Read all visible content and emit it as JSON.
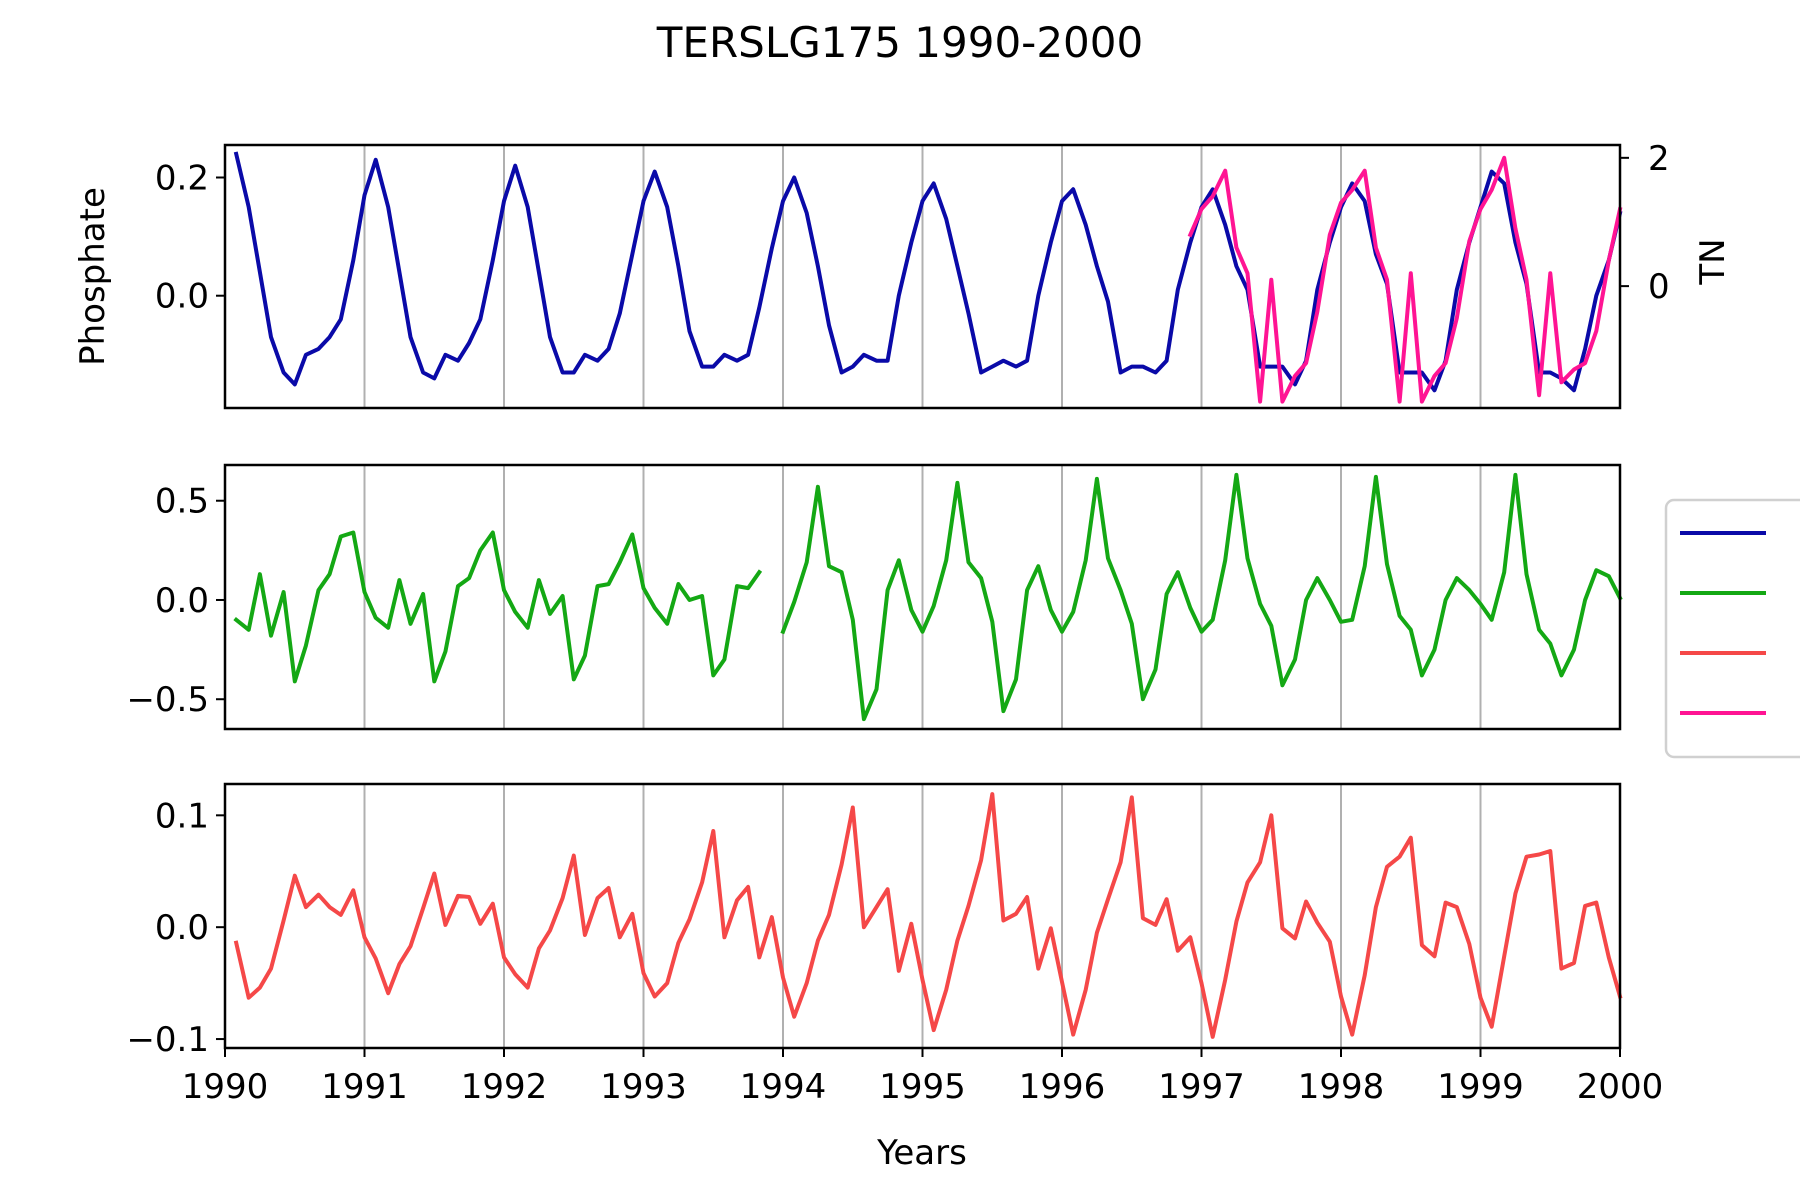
{
  "chart_data": {
    "type": "line",
    "title": "TERSLG175 1990-2000",
    "xlabel": "Years",
    "xlim": [
      1990,
      2000
    ],
    "xticks": [
      "1990",
      "1991",
      "1992",
      "1993",
      "1994",
      "1995",
      "1996",
      "1997",
      "1998",
      "1999",
      "2000"
    ],
    "grid": "vertical",
    "legend": "right (partially cut off, labels not visible)",
    "legend_colors": [
      "#0a0aa8",
      "#14a814",
      "#f54848",
      "#ff1493"
    ],
    "panels": [
      {
        "ylabel": "Phosphate",
        "ylim": [
          -0.19,
          0.255
        ],
        "yticks": [
          {
            "value": 0.2,
            "label": "0.2"
          },
          {
            "value": 0.0,
            "label": "0.0"
          }
        ],
        "secondary_axis": {
          "label": "TN",
          "ylim": [
            -1.9,
            2.2
          ],
          "yticks": [
            {
              "value": 2,
              "label": "2"
            },
            {
              "value": 0,
              "label": "0"
            }
          ]
        },
        "series": [
          {
            "color": "#0a0aa8",
            "axis": "left",
            "x": [
              1990.08,
              1990.17,
              1990.25,
              1990.33,
              1990.42,
              1990.5,
              1990.58,
              1990.67,
              1990.75,
              1990.83,
              1990.92,
              1991.0,
              1991.08,
              1991.17,
              1991.25,
              1991.33,
              1991.42,
              1991.5,
              1991.58,
              1991.67,
              1991.75,
              1991.83,
              1991.92,
              1992.0,
              1992.08,
              1992.17,
              1992.25,
              1992.33,
              1992.42,
              1992.5,
              1992.58,
              1992.67,
              1992.75,
              1992.83,
              1992.92,
              1993.0,
              1993.08,
              1993.17,
              1993.25,
              1993.33,
              1993.42,
              1993.5,
              1993.58,
              1993.67,
              1993.75,
              1993.83,
              1993.92,
              1994.0,
              1994.08,
              1994.17,
              1994.25,
              1994.33,
              1994.42,
              1994.5,
              1994.58,
              1994.67,
              1994.75,
              1994.83,
              1994.92,
              1995.0,
              1995.08,
              1995.17,
              1995.25,
              1995.33,
              1995.42,
              1995.5,
              1995.58,
              1995.67,
              1995.75,
              1995.83,
              1995.92,
              1996.0,
              1996.08,
              1996.17,
              1996.25,
              1996.33,
              1996.42,
              1996.5,
              1996.58,
              1996.67,
              1996.75,
              1996.83,
              1996.92,
              1997.0,
              1997.08,
              1997.17,
              1997.25,
              1997.33,
              1997.42,
              1997.5,
              1997.58,
              1997.67,
              1997.75,
              1997.83,
              1997.92,
              1998.0,
              1998.08,
              1998.17,
              1998.25,
              1998.33,
              1998.42,
              1998.5,
              1998.58,
              1998.67,
              1998.75,
              1998.83,
              1998.92,
              1999.0,
              1999.08,
              1999.17,
              1999.25,
              1999.33,
              1999.42,
              1999.5,
              1999.58,
              1999.67,
              1999.75,
              1999.83,
              1999.92,
              2000.0
            ],
            "y": [
              0.24,
              0.15,
              0.04,
              -0.07,
              -0.13,
              -0.15,
              -0.1,
              -0.09,
              -0.07,
              -0.04,
              0.06,
              0.17,
              0.23,
              0.15,
              0.04,
              -0.07,
              -0.13,
              -0.14,
              -0.1,
              -0.11,
              -0.08,
              -0.04,
              0.06,
              0.16,
              0.22,
              0.15,
              0.04,
              -0.07,
              -0.13,
              -0.13,
              -0.1,
              -0.11,
              -0.09,
              -0.03,
              0.07,
              0.16,
              0.21,
              0.15,
              0.05,
              -0.06,
              -0.12,
              -0.12,
              -0.1,
              -0.11,
              -0.1,
              -0.02,
              0.08,
              0.16,
              0.2,
              0.14,
              0.05,
              -0.05,
              -0.13,
              -0.12,
              -0.1,
              -0.11,
              -0.11,
              0.0,
              0.09,
              0.16,
              0.19,
              0.13,
              0.05,
              -0.03,
              -0.13,
              -0.12,
              -0.11,
              -0.12,
              -0.11,
              0.0,
              0.09,
              0.16,
              0.18,
              0.12,
              0.05,
              -0.01,
              -0.13,
              -0.12,
              -0.12,
              -0.13,
              -0.11,
              0.01,
              0.09,
              0.15,
              0.18,
              0.12,
              0.05,
              0.01,
              -0.12,
              -0.12,
              -0.12,
              -0.15,
              -0.11,
              0.01,
              0.09,
              0.15,
              0.19,
              0.16,
              0.07,
              0.02,
              -0.13,
              -0.13,
              -0.13,
              -0.16,
              -0.11,
              0.01,
              0.09,
              0.15,
              0.21,
              0.19,
              0.09,
              0.02,
              -0.13,
              -0.13,
              -0.14,
              -0.16,
              -0.09,
              0.0,
              0.06,
              0.14
            ]
          },
          {
            "color": "#ff1493",
            "axis": "right",
            "x": [
              1996.92,
              1997.0,
              1997.08,
              1997.17,
              1997.25,
              1997.33,
              1997.42,
              1997.5,
              1997.58,
              1997.67,
              1997.75,
              1997.83,
              1997.92,
              1998.0,
              1998.08,
              1998.17,
              1998.25,
              1998.33,
              1998.42,
              1998.5,
              1998.58,
              1998.67,
              1998.75,
              1998.83,
              1998.92,
              1999.0,
              1999.08,
              1999.17,
              1999.25,
              1999.33,
              1999.42,
              1999.5,
              1999.58,
              1999.67,
              1999.75,
              1999.83,
              1999.92,
              2000.0
            ],
            "y": [
              0.8,
              1.2,
              1.4,
              1.8,
              0.6,
              0.2,
              -1.8,
              0.1,
              -1.8,
              -1.4,
              -1.2,
              -0.4,
              0.8,
              1.3,
              1.5,
              1.8,
              0.6,
              0.1,
              -1.8,
              0.2,
              -1.8,
              -1.4,
              -1.2,
              -0.5,
              0.7,
              1.2,
              1.5,
              2.0,
              0.9,
              0.1,
              -1.7,
              0.2,
              -1.5,
              -1.3,
              -1.2,
              -0.7,
              0.4,
              1.2
            ]
          }
        ]
      },
      {
        "ylabel": "",
        "ylim": [
          -0.65,
          0.68
        ],
        "yticks": [
          {
            "value": 0.5,
            "label": "0.5"
          },
          {
            "value": 0.0,
            "label": "0.0"
          },
          {
            "value": -0.5,
            "label": "−0.5"
          }
        ],
        "series": [
          {
            "color": "#14a814",
            "axis": "left",
            "x": [
              1990.08,
              1990.17,
              1990.25,
              1990.33,
              1990.42,
              1990.5,
              1990.58,
              1990.67,
              1990.75,
              1990.83,
              1990.92,
              1991.0,
              1991.08,
              1991.17,
              1991.25,
              1991.33,
              1991.42,
              1991.5,
              1991.58,
              1991.67,
              1991.75,
              1991.83,
              1991.92,
              1992.0,
              1992.08,
              1992.17,
              1992.25,
              1992.33,
              1992.42,
              1992.5,
              1992.58,
              1992.67,
              1992.75,
              1992.83,
              1992.92,
              1993.0,
              1993.08,
              1993.17,
              1993.25,
              1993.33,
              1993.42,
              1993.5,
              1993.58,
              1993.67,
              1993.75,
              1993.83
            ],
            "y": [
              -0.1,
              -0.15,
              0.13,
              -0.18,
              0.04,
              -0.41,
              -0.23,
              0.05,
              0.13,
              0.32,
              0.34,
              0.04,
              -0.09,
              -0.14,
              0.1,
              -0.12,
              0.03,
              -0.41,
              -0.26,
              0.07,
              0.11,
              0.25,
              0.34,
              0.05,
              -0.06,
              -0.14,
              0.1,
              -0.07,
              0.02,
              -0.4,
              -0.28,
              0.07,
              0.08,
              0.19,
              0.33,
              0.06,
              -0.04,
              -0.12,
              0.08,
              0.0,
              0.02,
              -0.38,
              -0.3,
              0.07,
              0.06,
              0.14
            ]
          },
          {
            "color": "#14a814",
            "axis": "left",
            "x": [
              1994.0,
              1994.08,
              1994.17,
              1994.25,
              1994.33,
              1994.42,
              1994.5,
              1994.58,
              1994.67,
              1994.75,
              1994.83,
              1994.92,
              1995.0,
              1995.08,
              1995.17,
              1995.25,
              1995.33,
              1995.42,
              1995.5,
              1995.58,
              1995.67,
              1995.75,
              1995.83,
              1995.92,
              1996.0,
              1996.08,
              1996.17,
              1996.25,
              1996.33,
              1996.42,
              1996.5,
              1996.58,
              1996.67,
              1996.75,
              1996.83,
              1996.92,
              1997.0,
              1997.08,
              1997.17,
              1997.25,
              1997.33,
              1997.42,
              1997.5,
              1997.58,
              1997.67,
              1997.75,
              1997.83,
              1997.92,
              1998.0,
              1998.08,
              1998.17,
              1998.25,
              1998.33,
              1998.42,
              1998.5,
              1998.58,
              1998.67,
              1998.75,
              1998.83,
              1998.92,
              1999.0,
              1999.08,
              1999.17,
              1999.25,
              1999.33,
              1999.42,
              1999.5,
              1999.58,
              1999.67,
              1999.75,
              1999.83,
              1999.92,
              2000.0
            ],
            "y": [
              -0.16,
              -0.01,
              0.19,
              0.57,
              0.17,
              0.14,
              -0.1,
              -0.6,
              -0.45,
              0.05,
              0.2,
              -0.05,
              -0.16,
              -0.03,
              0.2,
              0.59,
              0.19,
              0.11,
              -0.11,
              -0.56,
              -0.4,
              0.05,
              0.17,
              -0.05,
              -0.16,
              -0.06,
              0.2,
              0.61,
              0.21,
              0.05,
              -0.12,
              -0.5,
              -0.35,
              0.03,
              0.14,
              -0.04,
              -0.16,
              -0.1,
              0.2,
              0.63,
              0.21,
              -0.02,
              -0.13,
              -0.43,
              -0.3,
              0.0,
              0.11,
              0.0,
              -0.11,
              -0.1,
              0.17,
              0.62,
              0.18,
              -0.08,
              -0.15,
              -0.38,
              -0.25,
              0.0,
              0.11,
              0.05,
              -0.02,
              -0.1,
              0.14,
              0.63,
              0.13,
              -0.15,
              -0.22,
              -0.38,
              -0.25,
              0.0,
              0.15,
              0.12,
              0.01
            ]
          }
        ]
      },
      {
        "ylabel": "",
        "ylim": [
          -0.108,
          0.128
        ],
        "yticks": [
          {
            "value": 0.1,
            "label": "0.1"
          },
          {
            "value": 0.0,
            "label": "0.0"
          },
          {
            "value": -0.1,
            "label": "−0.1"
          }
        ],
        "series": [
          {
            "color": "#f54848",
            "axis": "left",
            "x": [
              1990.08,
              1990.17,
              1990.25,
              1990.33,
              1990.42,
              1990.5,
              1990.58,
              1990.67,
              1990.75,
              1990.83,
              1990.92,
              1991.0,
              1991.08,
              1991.17,
              1991.25,
              1991.33,
              1991.42,
              1991.5,
              1991.58,
              1991.67,
              1991.75,
              1991.83,
              1991.92,
              1992.0,
              1992.08,
              1992.17,
              1992.25,
              1992.33,
              1992.42,
              1992.5,
              1992.58,
              1992.67,
              1992.75,
              1992.83,
              1992.92,
              1993.0,
              1993.08,
              1993.17,
              1993.25,
              1993.33,
              1993.42,
              1993.5,
              1993.58,
              1993.67,
              1993.75,
              1993.83,
              1993.92,
              1994.0,
              1994.08,
              1994.17,
              1994.25,
              1994.33,
              1994.42,
              1994.5,
              1994.58,
              1994.67,
              1994.75,
              1994.83,
              1994.92,
              1995.0,
              1995.08,
              1995.17,
              1995.25,
              1995.33,
              1995.42,
              1995.5,
              1995.58,
              1995.67,
              1995.75,
              1995.83,
              1995.92,
              1996.0,
              1996.08,
              1996.17,
              1996.25,
              1996.33,
              1996.42,
              1996.5,
              1996.58,
              1996.67,
              1996.75,
              1996.83,
              1996.92,
              1997.0,
              1997.08,
              1997.17,
              1997.25,
              1997.33,
              1997.42,
              1997.5,
              1997.58,
              1997.67,
              1997.75,
              1997.83,
              1997.92,
              1998.0,
              1998.08,
              1998.17,
              1998.25,
              1998.33,
              1998.42,
              1998.5,
              1998.58,
              1998.67,
              1998.75,
              1998.83,
              1998.92,
              1999.0,
              1999.08,
              1999.17,
              1999.25,
              1999.33,
              1999.42,
              1999.5,
              1999.58,
              1999.67,
              1999.75,
              1999.83,
              1999.92,
              2000.0
            ],
            "y": [
              -0.014,
              -0.063,
              -0.054,
              -0.037,
              0.006,
              0.046,
              0.018,
              0.029,
              0.018,
              0.011,
              0.033,
              -0.009,
              -0.028,
              -0.059,
              -0.033,
              -0.017,
              0.017,
              0.048,
              0.002,
              0.028,
              0.027,
              0.003,
              0.021,
              -0.027,
              -0.042,
              -0.054,
              -0.019,
              -0.003,
              0.026,
              0.064,
              -0.007,
              0.026,
              0.035,
              -0.009,
              0.012,
              -0.041,
              -0.062,
              -0.05,
              -0.014,
              0.007,
              0.04,
              0.086,
              -0.009,
              0.024,
              0.036,
              -0.027,
              0.009,
              -0.045,
              -0.08,
              -0.05,
              -0.012,
              0.011,
              0.056,
              0.107,
              0.0,
              0.018,
              0.034,
              -0.039,
              0.003,
              -0.047,
              -0.092,
              -0.056,
              -0.012,
              0.019,
              0.06,
              0.119,
              0.006,
              0.012,
              0.027,
              -0.037,
              -0.001,
              -0.049,
              -0.096,
              -0.056,
              -0.005,
              0.025,
              0.058,
              0.116,
              0.008,
              0.002,
              0.025,
              -0.021,
              -0.009,
              -0.05,
              -0.098,
              -0.047,
              0.005,
              0.04,
              0.058,
              0.1,
              -0.001,
              -0.01,
              0.023,
              0.004,
              -0.013,
              -0.062,
              -0.096,
              -0.043,
              0.018,
              0.054,
              0.063,
              0.08,
              -0.016,
              -0.026,
              0.022,
              0.018,
              -0.015,
              -0.063,
              -0.089,
              -0.026,
              0.03,
              0.063,
              0.065,
              0.068,
              -0.037,
              -0.032,
              0.019,
              0.022,
              -0.027,
              -0.062
            ]
          }
        ]
      }
    ]
  }
}
